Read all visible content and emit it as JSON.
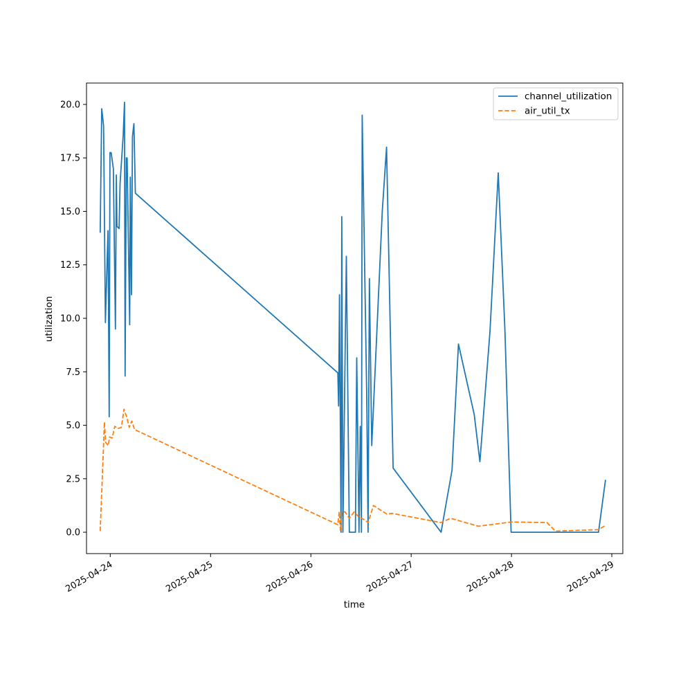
{
  "chart_data": {
    "type": "line",
    "title": "",
    "xlabel": "time",
    "ylabel": "utilization",
    "x_tick_labels": [
      "2025-04-24",
      "2025-04-25",
      "2025-04-26",
      "2025-04-27",
      "2025-04-28",
      "2025-04-29"
    ],
    "y_tick_labels": [
      "0.0",
      "2.5",
      "5.0",
      "7.5",
      "10.0",
      "12.5",
      "15.0",
      "17.5",
      "20.0"
    ],
    "xlim": [
      "2025-04-23 18:19",
      "2025-04-29 02:38"
    ],
    "ylim": [
      -1.0,
      21.0
    ],
    "legend_position": "top-right",
    "grid": false,
    "series": [
      {
        "name": "channel_utilization",
        "color": "#1f77b4",
        "style": "solid",
        "points": [
          [
            "2025-04-23 21:36",
            14.0
          ],
          [
            "2025-04-23 21:58",
            19.8
          ],
          [
            "2025-04-23 22:24",
            19.0
          ],
          [
            "2025-04-23 22:50",
            9.8
          ],
          [
            "2025-04-23 23:28",
            14.1
          ],
          [
            "2025-04-23 23:45",
            5.4
          ],
          [
            "2025-04-23 23:56",
            17.75
          ],
          [
            "2025-04-24 00:13",
            17.75
          ],
          [
            "2025-04-24 00:44",
            17.0
          ],
          [
            "2025-04-24 01:14",
            9.5
          ],
          [
            "2025-04-24 01:27",
            16.7
          ],
          [
            "2025-04-24 01:36",
            14.3
          ],
          [
            "2025-04-24 02:07",
            14.2
          ],
          [
            "2025-04-24 02:21",
            16.3
          ],
          [
            "2025-04-24 03:07",
            18.6
          ],
          [
            "2025-04-24 03:24",
            20.1
          ],
          [
            "2025-04-24 03:33",
            7.3
          ],
          [
            "2025-04-24 03:50",
            17.5
          ],
          [
            "2025-04-24 04:02",
            17.5
          ],
          [
            "2025-04-24 04:39",
            9.7
          ],
          [
            "2025-04-24 04:48",
            16.6
          ],
          [
            "2025-04-24 05:05",
            11.1
          ],
          [
            "2025-04-24 05:19",
            18.5
          ],
          [
            "2025-04-24 05:39",
            19.1
          ],
          [
            "2025-04-24 06:00",
            15.85
          ],
          [
            "2025-04-26 06:27",
            7.45
          ],
          [
            "2025-04-26 06:38",
            5.9
          ],
          [
            "2025-04-26 06:51",
            11.1
          ],
          [
            "2025-04-26 07:13",
            0.0
          ],
          [
            "2025-04-26 07:24",
            14.75
          ],
          [
            "2025-04-26 07:40",
            0.0
          ],
          [
            "2025-04-26 08:29",
            12.9
          ],
          [
            "2025-04-26 09:12",
            0.0
          ],
          [
            "2025-04-26 10:39",
            0.0
          ],
          [
            "2025-04-26 10:58",
            8.15
          ],
          [
            "2025-04-26 11:31",
            0.0
          ],
          [
            "2025-04-26 11:49",
            4.95
          ],
          [
            "2025-04-26 12:06",
            0.0
          ],
          [
            "2025-04-26 12:17",
            19.5
          ],
          [
            "2025-04-26 13:22",
            6.3
          ],
          [
            "2025-04-26 13:41",
            0.0
          ],
          [
            "2025-04-26 14:00",
            11.85
          ],
          [
            "2025-04-26 14:34",
            4.05
          ],
          [
            "2025-04-26 17:05",
            15.0
          ],
          [
            "2025-04-26 18:06",
            18.0
          ],
          [
            "2025-04-26 19:41",
            3.0
          ],
          [
            "2025-04-27 07:09",
            0.0
          ],
          [
            "2025-04-27 09:46",
            2.9
          ],
          [
            "2025-04-27 11:19",
            8.8
          ],
          [
            "2025-04-27 15:05",
            5.5
          ],
          [
            "2025-04-27 16:27",
            3.3
          ],
          [
            "2025-04-27 18:52",
            9.4
          ],
          [
            "2025-04-27 20:50",
            16.8
          ],
          [
            "2025-04-27 22:26",
            9.4
          ],
          [
            "2025-04-27 23:55",
            0.0
          ],
          [
            "2025-04-28 20:49",
            0.0
          ],
          [
            "2025-04-28 22:30",
            2.45
          ]
        ]
      },
      {
        "name": "air_util_tx",
        "color": "#ff7f0e",
        "style": "dashed",
        "points": [
          [
            "2025-04-23 21:36",
            0.05
          ],
          [
            "2025-04-23 22:18",
            3.6
          ],
          [
            "2025-04-23 22:36",
            5.15
          ],
          [
            "2025-04-23 22:54",
            4.2
          ],
          [
            "2025-04-23 23:32",
            4.05
          ],
          [
            "2025-04-23 23:50",
            4.45
          ],
          [
            "2025-04-24 00:27",
            4.4
          ],
          [
            "2025-04-24 01:05",
            4.95
          ],
          [
            "2025-04-24 01:53",
            4.85
          ],
          [
            "2025-04-24 02:40",
            4.9
          ],
          [
            "2025-04-24 03:17",
            5.75
          ],
          [
            "2025-04-24 03:55",
            5.4
          ],
          [
            "2025-04-24 04:33",
            4.9
          ],
          [
            "2025-04-24 05:10",
            5.2
          ],
          [
            "2025-04-24 05:48",
            4.8
          ],
          [
            "2025-04-26 06:27",
            0.35
          ],
          [
            "2025-04-26 06:46",
            0.95
          ],
          [
            "2025-04-26 07:05",
            0.05
          ],
          [
            "2025-04-26 07:24",
            0.95
          ],
          [
            "2025-04-26 08:10",
            0.95
          ],
          [
            "2025-04-26 09:12",
            0.65
          ],
          [
            "2025-04-26 10:22",
            0.95
          ],
          [
            "2025-04-26 11:33",
            0.7
          ],
          [
            "2025-04-26 12:38",
            0.6
          ],
          [
            "2025-04-26 13:41",
            0.45
          ],
          [
            "2025-04-26 14:59",
            1.25
          ],
          [
            "2025-04-26 16:32",
            1.05
          ],
          [
            "2025-04-26 18:10",
            0.85
          ],
          [
            "2025-04-26 19:29",
            0.88
          ],
          [
            "2025-04-27 07:06",
            0.45
          ],
          [
            "2025-04-27 09:24",
            0.65
          ],
          [
            "2025-04-27 16:06",
            0.28
          ],
          [
            "2025-04-28 00:00",
            0.48
          ],
          [
            "2025-04-28 08:29",
            0.45
          ],
          [
            "2025-04-28 10:29",
            0.05
          ],
          [
            "2025-04-28 20:49",
            0.12
          ],
          [
            "2025-04-28 22:20",
            0.3
          ]
        ]
      }
    ]
  }
}
